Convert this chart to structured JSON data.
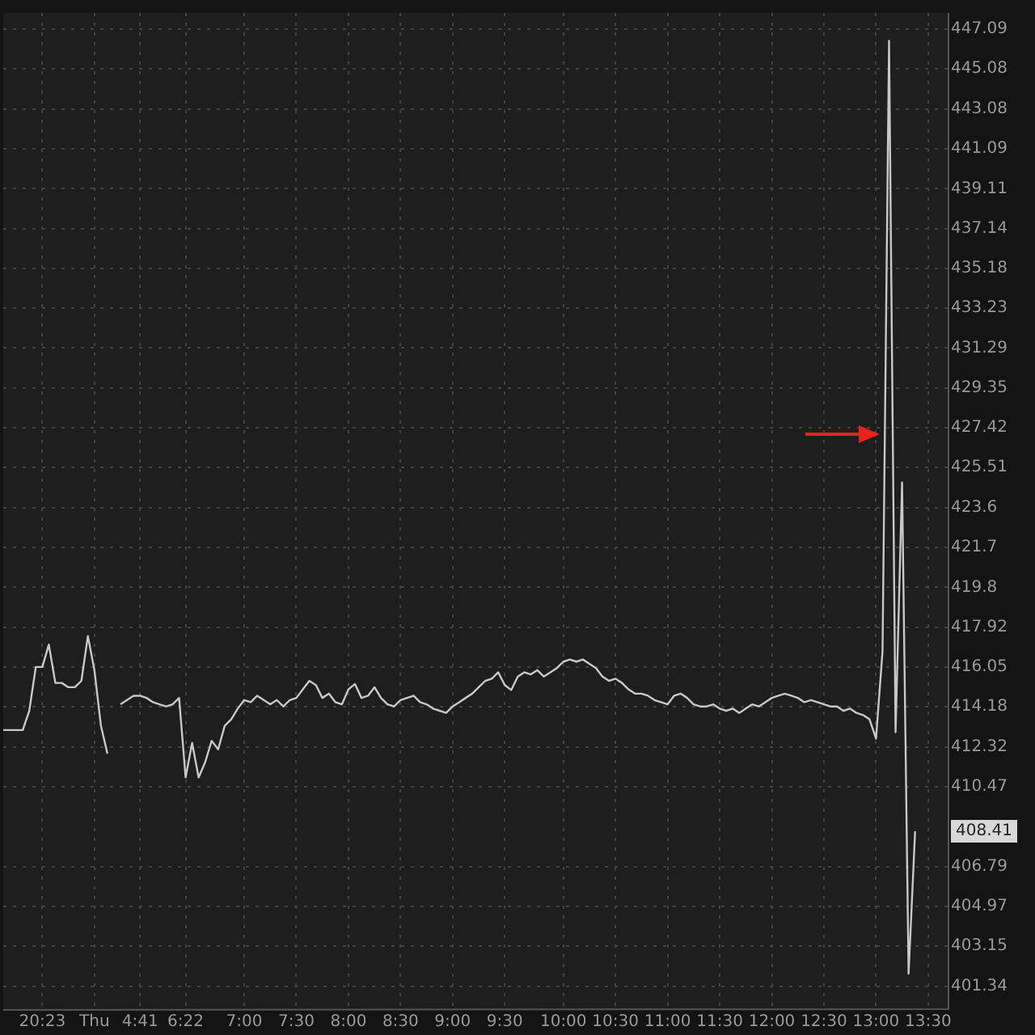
{
  "chart_data": {
    "type": "line",
    "log": "y",
    "grid": true,
    "marker": "none",
    "line_style": "solid",
    "color": "#c8c8c8",
    "categories": [
      null,
      null,
      null,
      null,
      null,
      null,
      "20:23",
      null,
      null,
      null,
      null,
      null,
      null,
      null,
      "Thu",
      null,
      null,
      null,
      null,
      null,
      null,
      "4:41",
      null,
      null,
      null,
      null,
      null,
      null,
      "6:22",
      null,
      null,
      null,
      null,
      null,
      null,
      null,
      null,
      "7:00",
      null,
      null,
      null,
      null,
      null,
      null,
      null,
      "7:30",
      null,
      null,
      null,
      null,
      null,
      null,
      null,
      "8:00",
      null,
      null,
      null,
      null,
      null,
      null,
      null,
      "8:30",
      null,
      null,
      null,
      null,
      null,
      null,
      null,
      "9:00",
      null,
      null,
      null,
      null,
      null,
      null,
      null,
      "9:30",
      null,
      null,
      null,
      null,
      null,
      null,
      null,
      null,
      "10:00",
      null,
      null,
      null,
      null,
      null,
      null,
      null,
      "10:30",
      null,
      null,
      null,
      null,
      null,
      null,
      null,
      "11:00",
      null,
      null,
      null,
      null,
      null,
      null,
      null,
      "11:30",
      null,
      null,
      null,
      null,
      null,
      null,
      null,
      "12:00",
      null,
      null,
      null,
      null,
      null,
      null,
      null,
      "12:30",
      null,
      null,
      null,
      null,
      null,
      null,
      null,
      "13:00",
      null,
      null,
      null,
      null,
      null,
      null,
      null,
      "13:30",
      null,
      null,
      null
    ],
    "values": [
      413.1,
      413.1,
      413.1,
      413.1,
      414.0,
      416.05,
      416.05,
      417.1,
      415.3,
      415.3,
      415.1,
      415.1,
      415.4,
      417.5,
      415.9,
      413.3,
      412.0,
      null,
      414.3,
      414.5,
      414.7,
      414.7,
      414.6,
      414.4,
      414.3,
      414.2,
      414.3,
      414.6,
      410.9,
      412.5,
      410.9,
      411.6,
      412.6,
      412.2,
      413.3,
      413.6,
      414.1,
      414.5,
      414.4,
      414.7,
      414.5,
      414.3,
      414.5,
      414.2,
      414.5,
      414.6,
      415.0,
      415.4,
      415.2,
      414.6,
      414.8,
      414.4,
      414.3,
      415.0,
      415.25,
      414.6,
      414.7,
      415.1,
      414.6,
      414.3,
      414.2,
      414.5,
      414.6,
      414.7,
      414.4,
      414.3,
      414.1,
      414.0,
      413.9,
      414.2,
      414.4,
      414.6,
      414.8,
      415.1,
      415.4,
      415.5,
      415.8,
      415.2,
      414.97,
      415.6,
      415.8,
      415.7,
      415.9,
      415.6,
      415.8,
      416.0,
      416.3,
      416.4,
      416.3,
      416.4,
      416.2,
      416.0,
      415.6,
      415.4,
      415.5,
      415.3,
      415.0,
      414.8,
      414.8,
      414.7,
      414.5,
      414.4,
      414.3,
      414.7,
      414.8,
      414.6,
      414.3,
      414.2,
      414.2,
      414.3,
      414.1,
      414.0,
      414.1,
      413.9,
      414.1,
      414.3,
      414.2,
      414.4,
      414.6,
      414.7,
      414.8,
      414.7,
      414.6,
      414.4,
      414.5,
      414.4,
      414.3,
      414.2,
      414.2,
      414.0,
      414.1,
      413.9,
      413.8,
      413.6,
      412.7,
      416.8,
      446.5,
      413.0,
      424.8,
      401.9,
      408.41,
      null,
      null,
      null,
      null,
      null
    ],
    "ylim": [
      400.3,
      447.9
    ],
    "yticks": [
      401.34,
      403.15,
      404.97,
      406.79,
      410.47,
      412.32,
      414.18,
      416.05,
      417.92,
      419.8,
      421.7,
      423.6,
      425.51,
      427.42,
      429.35,
      431.29,
      433.23,
      435.18,
      437.14,
      439.11,
      441.09,
      443.08,
      445.08,
      447.09
    ],
    "annotations": [
      {
        "text": "408.41",
        "y": 408.41
      }
    ]
  }
}
